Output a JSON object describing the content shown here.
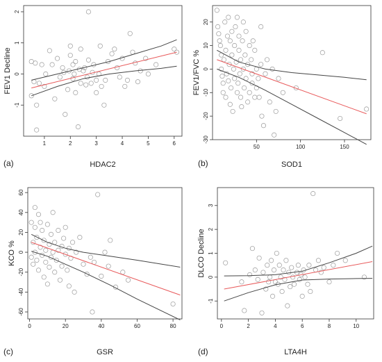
{
  "chart_data": [
    {
      "type": "scatter",
      "panel_label": "(a)",
      "xlabel": "HDAC2",
      "ylabel": "FEV1 Decline",
      "xlim": [
        0.2,
        6.3
      ],
      "ylim": [
        -2.0,
        2.2
      ],
      "xticks": [
        1,
        2,
        3,
        4,
        5,
        6
      ],
      "yticks": [
        -1,
        0,
        1,
        2
      ],
      "points": [
        [
          0.5,
          0.4
        ],
        [
          0.5,
          -0.7
        ],
        [
          0.6,
          -0.25
        ],
        [
          0.65,
          0.35
        ],
        [
          0.7,
          -1.0
        ],
        [
          0.7,
          -1.8
        ],
        [
          0.8,
          -0.3
        ],
        [
          0.9,
          0.3
        ],
        [
          1.0,
          -0.4
        ],
        [
          1.05,
          0.0
        ],
        [
          1.2,
          0.75
        ],
        [
          1.3,
          0.3
        ],
        [
          1.4,
          -0.8
        ],
        [
          1.5,
          0.5
        ],
        [
          1.6,
          -0.1
        ],
        [
          1.7,
          0.2
        ],
        [
          1.75,
          0.05
        ],
        [
          1.8,
          -1.3
        ],
        [
          1.9,
          -0.5
        ],
        [
          1.95,
          0.1
        ],
        [
          2.0,
          0.6
        ],
        [
          2.0,
          0.9
        ],
        [
          2.1,
          0.3
        ],
        [
          2.1,
          -0.15
        ],
        [
          2.15,
          0.0
        ],
        [
          2.2,
          -0.6
        ],
        [
          2.2,
          0.4
        ],
        [
          2.3,
          -1.7
        ],
        [
          2.35,
          0.15
        ],
        [
          2.4,
          0.8
        ],
        [
          2.4,
          -0.3
        ],
        [
          2.5,
          0.1
        ],
        [
          2.55,
          0.2
        ],
        [
          2.6,
          -0.35
        ],
        [
          2.65,
          -0.1
        ],
        [
          2.7,
          2.0
        ],
        [
          2.7,
          0.45
        ],
        [
          2.8,
          -0.3
        ],
        [
          2.85,
          0.05
        ],
        [
          2.9,
          0.3
        ],
        [
          3.0,
          -0.6
        ],
        [
          3.0,
          -0.2
        ],
        [
          3.1,
          0.0
        ],
        [
          3.15,
          0.9
        ],
        [
          3.2,
          -0.4
        ],
        [
          3.3,
          -1.0
        ],
        [
          3.35,
          -0.2
        ],
        [
          3.45,
          0.4
        ],
        [
          3.6,
          0.65
        ],
        [
          3.7,
          0.8
        ],
        [
          3.8,
          0.2
        ],
        [
          3.9,
          -0.1
        ],
        [
          4.0,
          0.5
        ],
        [
          4.1,
          -0.4
        ],
        [
          4.2,
          -0.2
        ],
        [
          4.3,
          1.3
        ],
        [
          4.4,
          0.7
        ],
        [
          4.5,
          0.35
        ],
        [
          4.6,
          -0.25
        ],
        [
          4.7,
          0.1
        ],
        [
          4.9,
          0.5
        ],
        [
          5.0,
          0.0
        ],
        [
          5.3,
          0.3
        ],
        [
          6.0,
          0.8
        ],
        [
          6.1,
          0.7
        ]
      ],
      "regression": {
        "x": [
          0.5,
          6.1
        ],
        "y": [
          -0.45,
          0.7
        ]
      },
      "ci_upper": {
        "x": [
          0.5,
          1.5,
          2.5,
          3.5,
          4.5,
          5.5,
          6.1
        ],
        "y": [
          -0.2,
          0.0,
          0.2,
          0.4,
          0.65,
          0.9,
          1.1
        ]
      },
      "ci_lower": {
        "x": [
          0.5,
          1.5,
          2.5,
          3.5,
          4.5,
          5.5,
          6.1
        ],
        "y": [
          -0.7,
          -0.4,
          -0.15,
          0.0,
          0.1,
          0.18,
          0.25
        ]
      }
    },
    {
      "type": "scatter",
      "panel_label": "(b)",
      "xlabel": "SOD1",
      "ylabel": "FEV1/FVC %",
      "xlim": [
        0,
        180
      ],
      "ylim": [
        -30,
        27
      ],
      "xticks": [
        50,
        100,
        150
      ],
      "yticks": [
        -30,
        -20,
        -10,
        0,
        10,
        20
      ],
      "points": [
        [
          5,
          25
        ],
        [
          6,
          18
        ],
        [
          7,
          15
        ],
        [
          8,
          12
        ],
        [
          9,
          10
        ],
        [
          10,
          6
        ],
        [
          10,
          0
        ],
        [
          11,
          -3
        ],
        [
          12,
          -6
        ],
        [
          12,
          -10
        ],
        [
          13,
          4
        ],
        [
          14,
          20
        ],
        [
          15,
          8
        ],
        [
          15,
          -12
        ],
        [
          16,
          -2
        ],
        [
          17,
          14
        ],
        [
          18,
          22
        ],
        [
          18,
          -5
        ],
        [
          19,
          2
        ],
        [
          20,
          -15
        ],
        [
          20,
          12
        ],
        [
          21,
          -8
        ],
        [
          22,
          16
        ],
        [
          22,
          6
        ],
        [
          23,
          -18
        ],
        [
          24,
          0
        ],
        [
          25,
          10
        ],
        [
          25,
          -4
        ],
        [
          26,
          18
        ],
        [
          27,
          3
        ],
        [
          28,
          -10
        ],
        [
          28,
          22
        ],
        [
          29,
          -6
        ],
        [
          30,
          8
        ],
        [
          30,
          14
        ],
        [
          31,
          -2
        ],
        [
          32,
          -12
        ],
        [
          32,
          4
        ],
        [
          33,
          -16
        ],
        [
          34,
          12
        ],
        [
          35,
          0
        ],
        [
          35,
          20
        ],
        [
          36,
          -8
        ],
        [
          37,
          6
        ],
        [
          38,
          -4
        ],
        [
          38,
          16
        ],
        [
          40,
          2
        ],
        [
          40,
          -14
        ],
        [
          42,
          10
        ],
        [
          42,
          -10
        ],
        [
          44,
          4
        ],
        [
          45,
          -2
        ],
        [
          45,
          -6
        ],
        [
          46,
          12
        ],
        [
          48,
          -12
        ],
        [
          48,
          8
        ],
        [
          50,
          0
        ],
        [
          50,
          -8
        ],
        [
          52,
          -4
        ],
        [
          53,
          -12
        ],
        [
          55,
          2
        ],
        [
          55,
          18
        ],
        [
          56,
          -20
        ],
        [
          58,
          -24
        ],
        [
          60,
          -2
        ],
        [
          62,
          4
        ],
        [
          65,
          -14
        ],
        [
          68,
          0
        ],
        [
          70,
          -28
        ],
        [
          72,
          -18
        ],
        [
          75,
          -4
        ],
        [
          80,
          -10
        ],
        [
          95,
          -8
        ],
        [
          125,
          7
        ],
        [
          145,
          -21
        ],
        [
          175,
          -17
        ]
      ],
      "regression": {
        "x": [
          5,
          175
        ],
        "y": [
          4,
          -19
        ]
      },
      "ci_upper": {
        "x": [
          5,
          30,
          60,
          90,
          120,
          150,
          175
        ],
        "y": [
          8,
          3,
          0,
          -1.5,
          -2.5,
          -3.5,
          -4.5
        ]
      },
      "ci_lower": {
        "x": [
          5,
          30,
          60,
          90,
          120,
          150,
          175
        ],
        "y": [
          0,
          -3.5,
          -9,
          -15,
          -21,
          -27,
          -32
        ]
      }
    },
    {
      "type": "scatter",
      "panel_label": "(c)",
      "xlabel": "GSR",
      "ylabel": "KCO %",
      "xlim": [
        -1,
        85
      ],
      "ylim": [
        -67,
        65
      ],
      "xticks": [
        0,
        20,
        40,
        60,
        80
      ],
      "yticks": [
        -60,
        -40,
        -20,
        0,
        20,
        40,
        60
      ],
      "points": [
        [
          1,
          30
        ],
        [
          1,
          -5
        ],
        [
          2,
          10
        ],
        [
          2,
          -12
        ],
        [
          3,
          45
        ],
        [
          3,
          25
        ],
        [
          3,
          0
        ],
        [
          4,
          15
        ],
        [
          4,
          -8
        ],
        [
          5,
          38
        ],
        [
          5,
          -18
        ],
        [
          6,
          5
        ],
        [
          6,
          30
        ],
        [
          7,
          -3
        ],
        [
          7,
          22
        ],
        [
          8,
          12
        ],
        [
          8,
          -25
        ],
        [
          9,
          -10
        ],
        [
          9,
          2
        ],
        [
          10,
          28
        ],
        [
          10,
          -32
        ],
        [
          11,
          8
        ],
        [
          11,
          -15
        ],
        [
          12,
          18
        ],
        [
          12,
          -5
        ],
        [
          13,
          0
        ],
        [
          13,
          40
        ],
        [
          14,
          -20
        ],
        [
          14,
          10
        ],
        [
          15,
          -8
        ],
        [
          16,
          22
        ],
        [
          16,
          2
        ],
        [
          17,
          -28
        ],
        [
          18,
          6
        ],
        [
          18,
          -14
        ],
        [
          19,
          14
        ],
        [
          20,
          -2
        ],
        [
          20,
          25
        ],
        [
          21,
          -18
        ],
        [
          22,
          4
        ],
        [
          22,
          -34
        ],
        [
          23,
          -6
        ],
        [
          24,
          10
        ],
        [
          25,
          -40
        ],
        [
          26,
          0
        ],
        [
          28,
          15
        ],
        [
          30,
          -12
        ],
        [
          32,
          -22
        ],
        [
          34,
          -5
        ],
        [
          35,
          -60
        ],
        [
          36,
          -10
        ],
        [
          38,
          58
        ],
        [
          40,
          -24
        ],
        [
          42,
          0
        ],
        [
          44,
          -14
        ],
        [
          45,
          12
        ],
        [
          48,
          -35
        ],
        [
          52,
          -20
        ],
        [
          55,
          -28
        ],
        [
          80,
          -52
        ]
      ],
      "regression": {
        "x": [
          1,
          84
        ],
        "y": [
          10,
          -43
        ]
      },
      "ci_upper": {
        "x": [
          1,
          10,
          20,
          30,
          45,
          60,
          84
        ],
        "y": [
          18,
          10,
          4,
          0,
          -4,
          -8,
          -15
        ]
      },
      "ci_lower": {
        "x": [
          1,
          10,
          20,
          30,
          45,
          60,
          84
        ],
        "y": [
          1,
          -4,
          -12,
          -20,
          -33,
          -47,
          -68
        ]
      }
    },
    {
      "type": "scatter",
      "panel_label": "(d)",
      "xlabel": "LTA4H",
      "ylabel": "DLCO Decline",
      "xlim": [
        -0.3,
        11.3
      ],
      "ylim": [
        -1.75,
        3.75
      ],
      "xticks": [
        0,
        2,
        4,
        6,
        8,
        10
      ],
      "yticks": [
        -1,
        0,
        1,
        2,
        3
      ],
      "points": [
        [
          0.3,
          0.6
        ],
        [
          1.5,
          -0.2
        ],
        [
          1.7,
          -1.4
        ],
        [
          2.1,
          0.1
        ],
        [
          2.3,
          1.2
        ],
        [
          2.5,
          0.3
        ],
        [
          2.7,
          -0.1
        ],
        [
          2.8,
          0.8
        ],
        [
          3.0,
          -1.5
        ],
        [
          3.1,
          0.2
        ],
        [
          3.3,
          -0.5
        ],
        [
          3.4,
          0.5
        ],
        [
          3.5,
          -0.2
        ],
        [
          3.6,
          0.0
        ],
        [
          3.7,
          0.7
        ],
        [
          3.8,
          -0.8
        ],
        [
          3.9,
          0.3
        ],
        [
          4.0,
          -0.2
        ],
        [
          4.1,
          1.0
        ],
        [
          4.2,
          -0.3
        ],
        [
          4.3,
          0.5
        ],
        [
          4.4,
          0.0
        ],
        [
          4.5,
          -0.6
        ],
        [
          4.6,
          0.3
        ],
        [
          4.7,
          -0.1
        ],
        [
          4.8,
          0.7
        ],
        [
          4.9,
          -1.2
        ],
        [
          5.0,
          0.2
        ],
        [
          5.1,
          -0.4
        ],
        [
          5.2,
          0.4
        ],
        [
          5.3,
          0.0
        ],
        [
          5.4,
          -0.3
        ],
        [
          5.6,
          0.2
        ],
        [
          5.7,
          0.5
        ],
        [
          5.8,
          -0.1
        ],
        [
          5.9,
          0.1
        ],
        [
          6.0,
          -0.8
        ],
        [
          6.1,
          0.3
        ],
        [
          6.2,
          0.0
        ],
        [
          6.4,
          -0.3
        ],
        [
          6.5,
          0.5
        ],
        [
          6.6,
          -0.6
        ],
        [
          6.8,
          3.5
        ],
        [
          7.0,
          0.3
        ],
        [
          7.2,
          0.7
        ],
        [
          7.4,
          0.2
        ],
        [
          7.6,
          0.4
        ],
        [
          8.0,
          -0.2
        ],
        [
          8.3,
          0.5
        ],
        [
          8.6,
          1.0
        ],
        [
          9.2,
          0.7
        ],
        [
          10.6,
          0.0
        ]
      ],
      "regression": {
        "x": [
          0.2,
          11.2
        ],
        "y": [
          -0.5,
          0.65
        ]
      },
      "ci_upper": {
        "x": [
          0.2,
          2,
          4,
          6,
          8,
          10,
          11.2
        ],
        "y": [
          0.05,
          0.06,
          0.1,
          0.25,
          0.6,
          1.0,
          1.3
        ]
      },
      "ci_lower": {
        "x": [
          0.2,
          2,
          4,
          6,
          8,
          10,
          11.2
        ],
        "y": [
          -1.0,
          -0.65,
          -0.32,
          -0.12,
          -0.08,
          -0.06,
          -0.05
        ]
      }
    }
  ],
  "colors": {
    "points": "#9a9a9a",
    "regression": "#e8595a",
    "confidence": "#444444",
    "axis": "#333333"
  }
}
